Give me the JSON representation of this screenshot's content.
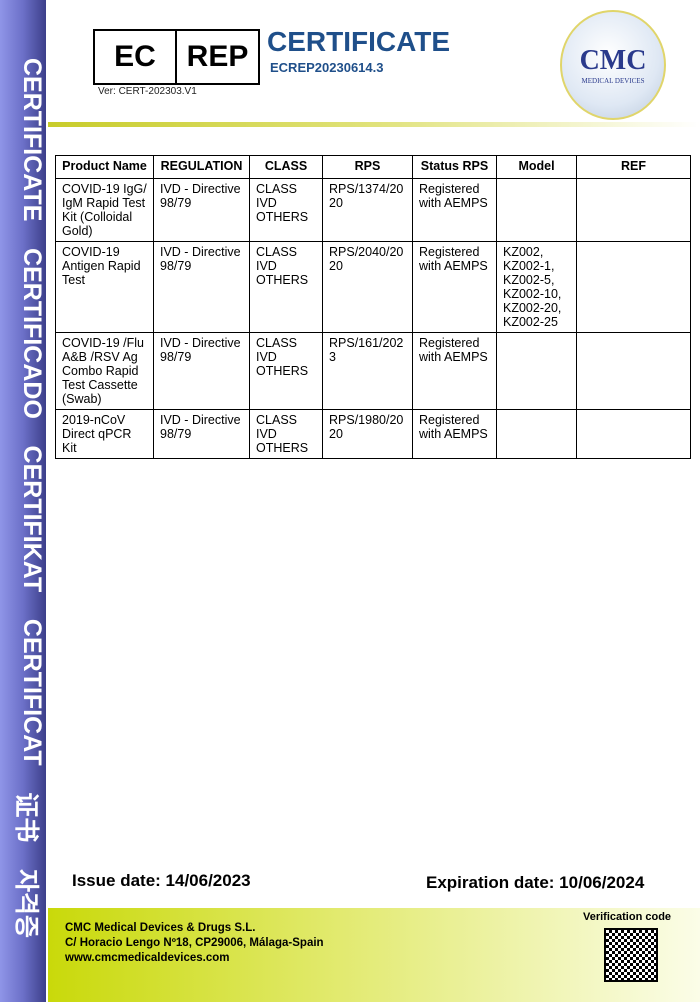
{
  "sidebar": {
    "words": [
      "CERTIFICATE",
      "CERTIFICADO",
      "CERTIFIKAT",
      "CERTIFICAT",
      "证书",
      "자격증"
    ]
  },
  "header": {
    "ec": "EC",
    "rep": "REP",
    "version": "Ver: CERT-202303.V1",
    "title": "CERTIFICATE",
    "code": "ECREP20230614.3",
    "logo_big": "CMC",
    "logo_small": "MEDICAL DEVICES"
  },
  "table": {
    "headers": [
      "Product Name",
      "REGULATION",
      "CLASS",
      "RPS",
      "Status RPS",
      "Model",
      "REF"
    ],
    "rows": [
      [
        "COVID-19 IgG/ IgM Rapid Test Kit (Colloidal Gold)",
        "IVD - Directive 98/79",
        "CLASS IVD OTHERS",
        "RPS/1374/2020",
        "Registered with AEMPS",
        "",
        ""
      ],
      [
        "COVID-19 Antigen Rapid Test",
        "IVD - Directive 98/79",
        "CLASS IVD OTHERS",
        "RPS/2040/2020",
        "Registered with AEMPS",
        "KZ002, KZ002-1, KZ002-5, KZ002-10, KZ002-20, KZ002-25",
        ""
      ],
      [
        "COVID-19 /Flu A&B /RSV Ag Combo Rapid Test Cassette (Swab)",
        "IVD - Directive 98/79",
        "CLASS IVD OTHERS",
        "RPS/161/2023",
        "Registered with AEMPS",
        "",
        ""
      ],
      [
        "2019-nCoV Direct qPCR Kit",
        "IVD - Directive 98/79",
        "CLASS IVD OTHERS",
        "RPS/1980/2020",
        "Registered with AEMPS",
        "",
        ""
      ]
    ]
  },
  "dates": {
    "issue": "Issue date: 14/06/2023",
    "expiration": "Expiration date: 10/06/2024"
  },
  "footer": {
    "company": "CMC Medical Devices & Drugs S.L.",
    "address": "C/ Horacio Lengo Nº18, CP29006, Málaga-Spain",
    "website": "www.cmcmedicaldevices.com",
    "verification": "Verification code"
  },
  "colors": {
    "title": "#1f4f8a",
    "sidebar": "#6c70c8",
    "accent": "#c9d90a"
  }
}
